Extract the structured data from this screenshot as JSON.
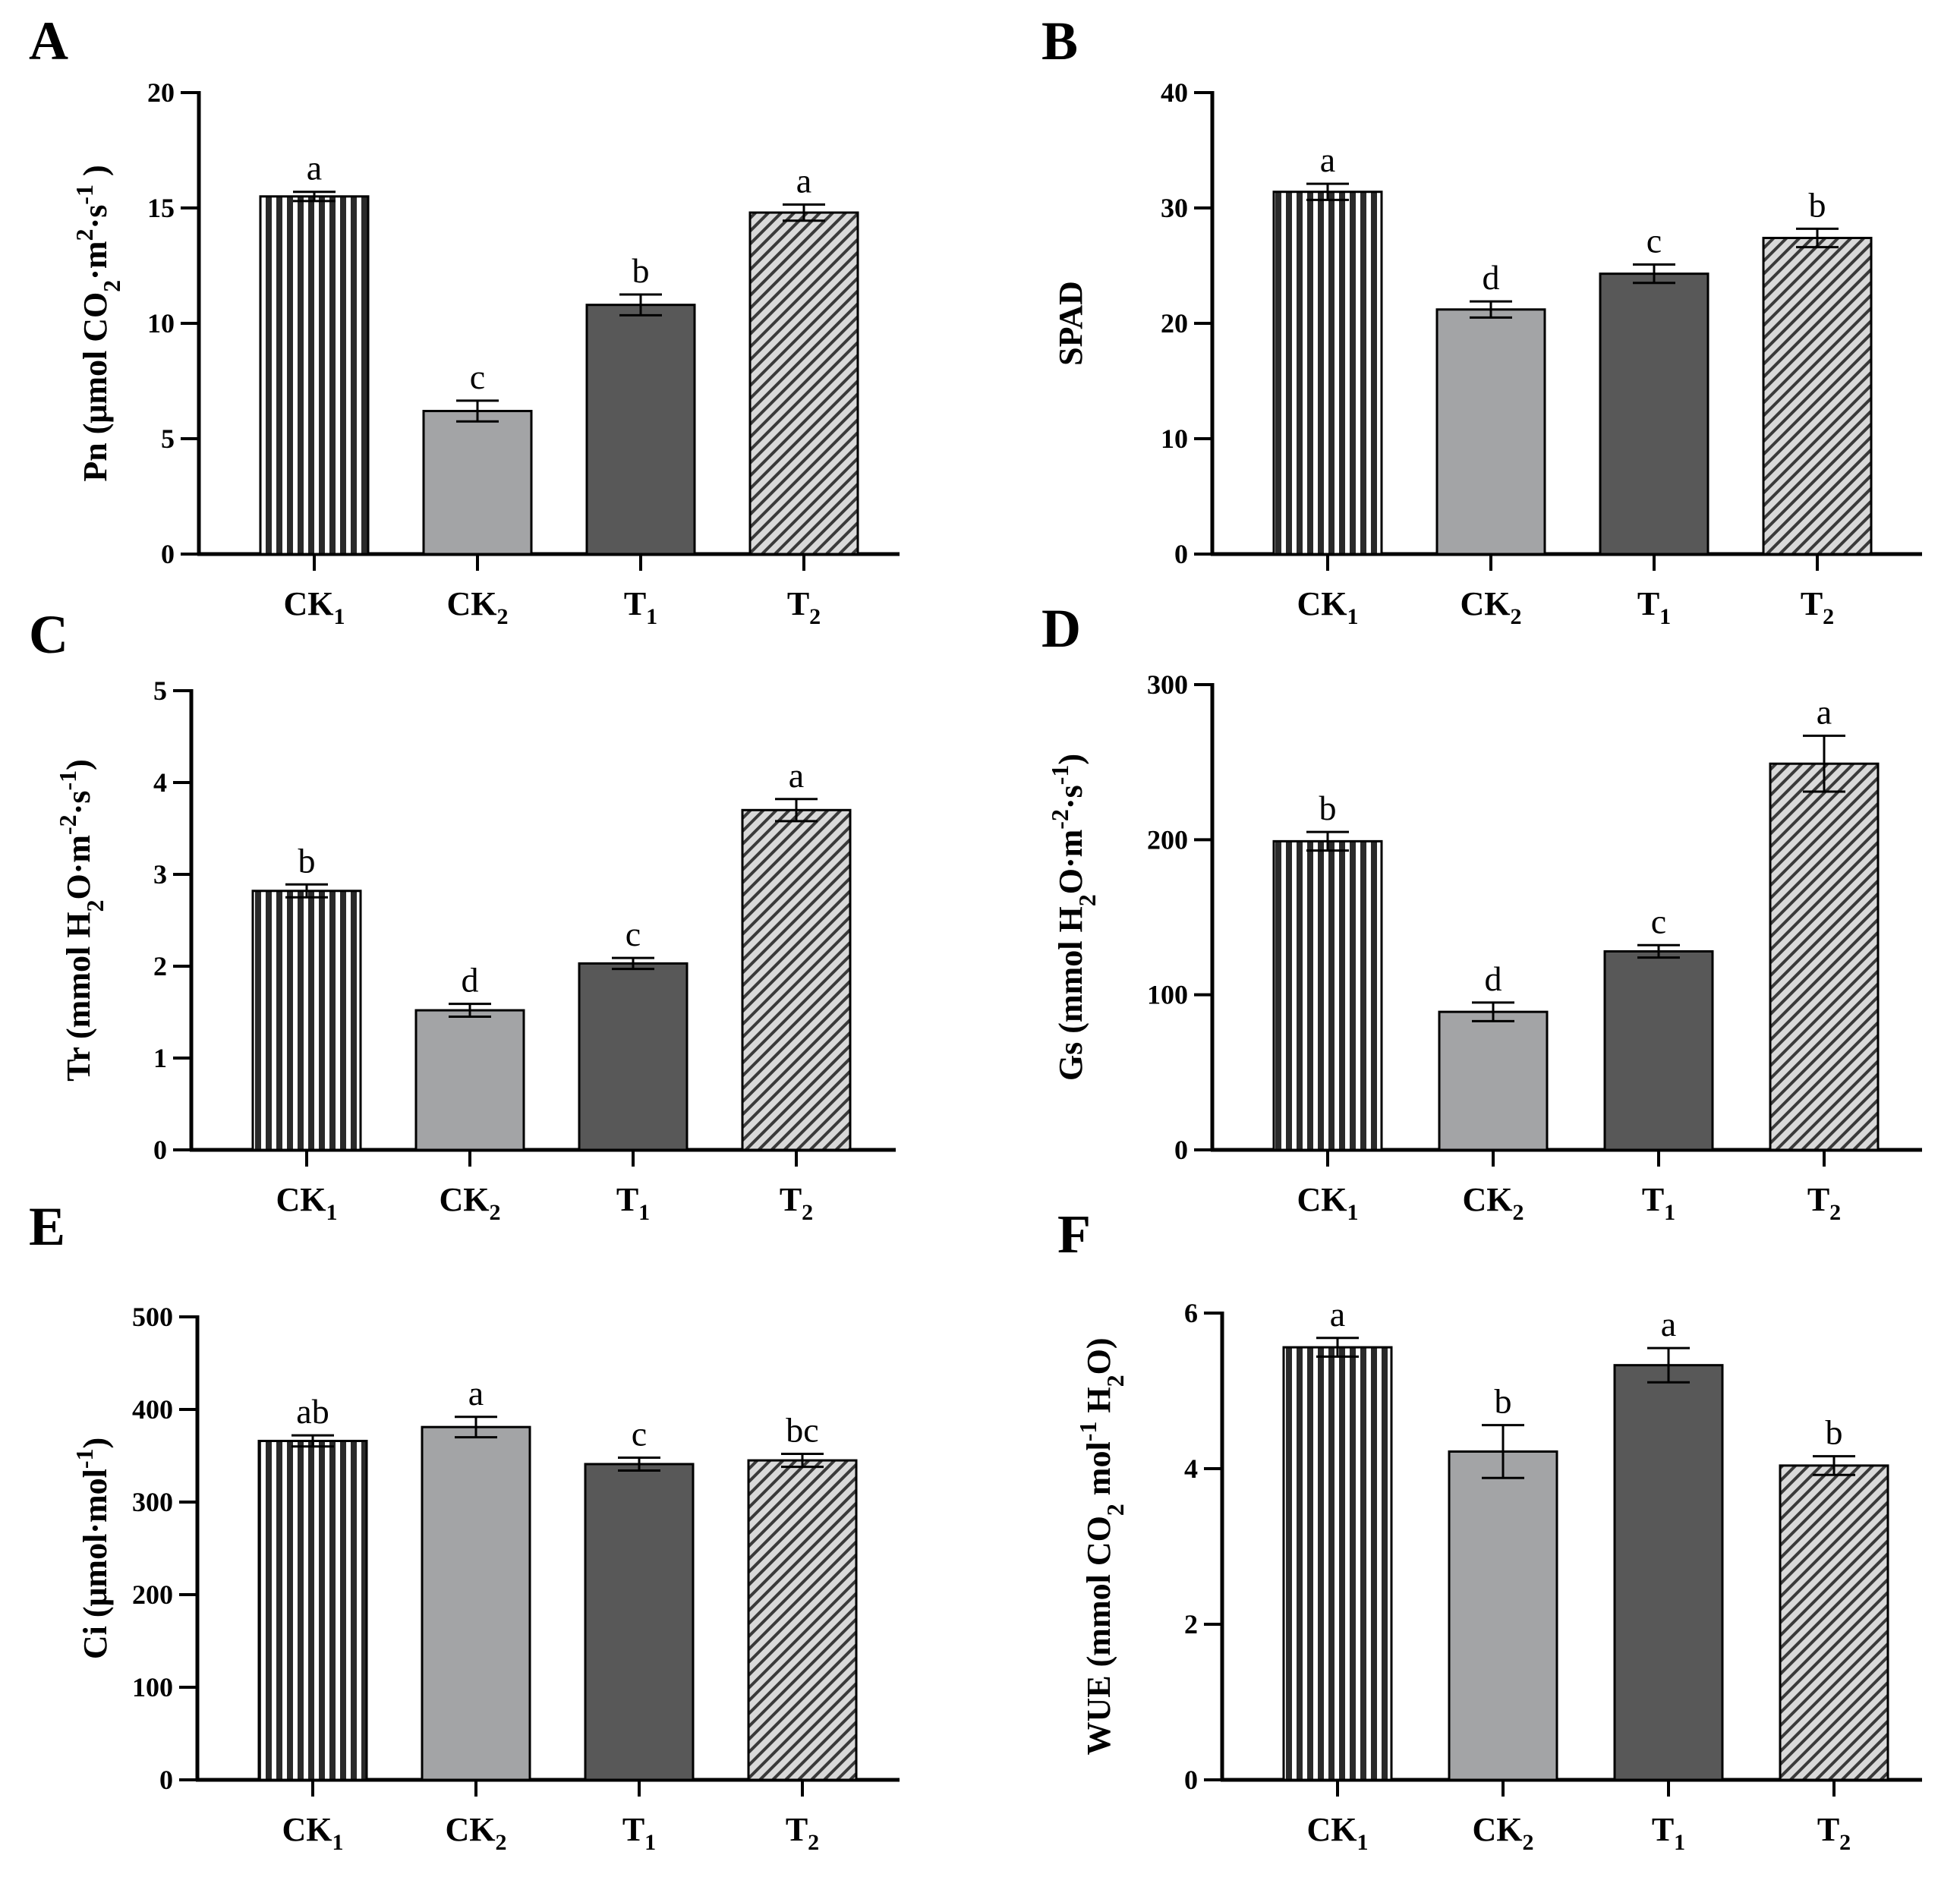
{
  "colors": {
    "ck2_fill": "#a3a4a6",
    "t1_fill": "#585858",
    "stripe_dark": "#2a2a2a",
    "hatch_bg": "#d9d9d9",
    "hatch_line": "#3a3a3a"
  },
  "chart_data": [
    {
      "type": "bar",
      "panel": "A",
      "categories": [
        {
          "main": "CK",
          "sub": "1"
        },
        {
          "main": "CK",
          "sub": "2"
        },
        {
          "main": "T",
          "sub": "1"
        },
        {
          "main": "T",
          "sub": "2"
        }
      ],
      "values": [
        15.5,
        6.2,
        10.8,
        14.8
      ],
      "errors": [
        0.2,
        0.45,
        0.45,
        0.35
      ],
      "letters": [
        "a",
        "c",
        "b",
        "a"
      ],
      "patterns": [
        "vstripe",
        "light",
        "dark",
        "hatch"
      ],
      "ylim": [
        0,
        20
      ],
      "yticks": [
        "0",
        "5",
        "10",
        "15",
        "20"
      ],
      "ylabel_parts": [
        {
          "t": "Pn (μmol CO"
        },
        {
          "t": "2",
          "s": "sub"
        },
        {
          "t": "·m"
        },
        {
          "t": "2",
          "s": "sup"
        },
        {
          "t": "·s"
        },
        {
          "t": "-1",
          "s": "sup"
        },
        {
          "t": " )"
        }
      ]
    },
    {
      "type": "bar",
      "panel": "B",
      "categories": [
        {
          "main": "CK",
          "sub": "1"
        },
        {
          "main": "CK",
          "sub": "2"
        },
        {
          "main": "T",
          "sub": "1"
        },
        {
          "main": "T",
          "sub": "2"
        }
      ],
      "values": [
        31.4,
        21.2,
        24.3,
        27.4
      ],
      "errors": [
        0.7,
        0.7,
        0.8,
        0.8
      ],
      "letters": [
        "a",
        "d",
        "c",
        "b"
      ],
      "patterns": [
        "vstripe",
        "light",
        "dark",
        "hatch"
      ],
      "ylim": [
        0,
        40
      ],
      "yticks": [
        "0",
        "10",
        "20",
        "30",
        "40"
      ],
      "ylabel_parts": [
        {
          "t": "SPAD"
        }
      ]
    },
    {
      "type": "bar",
      "panel": "C",
      "categories": [
        {
          "main": "CK",
          "sub": "1"
        },
        {
          "main": "CK",
          "sub": "2"
        },
        {
          "main": "T",
          "sub": "1"
        },
        {
          "main": "T",
          "sub": "2"
        }
      ],
      "values": [
        2.82,
        1.52,
        2.03,
        3.7
      ],
      "errors": [
        0.07,
        0.07,
        0.06,
        0.12
      ],
      "letters": [
        "b",
        "d",
        "c",
        "a"
      ],
      "patterns": [
        "vstripe",
        "light",
        "dark",
        "hatch"
      ],
      "ylim": [
        0,
        5
      ],
      "yticks": [
        "0",
        "1",
        "2",
        "3",
        "4",
        "5"
      ],
      "ylabel_parts": [
        {
          "t": "Tr (mmol H"
        },
        {
          "t": "2",
          "s": "sub"
        },
        {
          "t": "O·m"
        },
        {
          "t": "-2",
          "s": "sup"
        },
        {
          "t": "·s"
        },
        {
          "t": "-1",
          "s": "sup"
        },
        {
          "t": ")"
        }
      ]
    },
    {
      "type": "bar",
      "panel": "D",
      "categories": [
        {
          "main": "CK",
          "sub": "1"
        },
        {
          "main": "CK",
          "sub": "2"
        },
        {
          "main": "T",
          "sub": "1"
        },
        {
          "main": "T",
          "sub": "2"
        }
      ],
      "values": [
        199,
        89,
        128,
        249
      ],
      "errors": [
        6,
        6,
        4,
        18
      ],
      "letters": [
        "b",
        "d",
        "c",
        "a"
      ],
      "patterns": [
        "vstripe",
        "light",
        "dark",
        "hatch"
      ],
      "ylim": [
        0,
        300
      ],
      "yticks": [
        "0",
        "100",
        "200",
        "300"
      ],
      "ylabel_parts": [
        {
          "t": "Gs (mmol H"
        },
        {
          "t": "2",
          "s": "sub"
        },
        {
          "t": "O·m"
        },
        {
          "t": "-2",
          "s": "sup"
        },
        {
          "t": "·s"
        },
        {
          "t": "-1",
          "s": "sup"
        },
        {
          "t": ")"
        }
      ]
    },
    {
      "type": "bar",
      "panel": "E",
      "categories": [
        {
          "main": "CK",
          "sub": "1"
        },
        {
          "main": "CK",
          "sub": "2"
        },
        {
          "main": "T",
          "sub": "1"
        },
        {
          "main": "T",
          "sub": "2"
        }
      ],
      "values": [
        366,
        381,
        341,
        345
      ],
      "errors": [
        6,
        11,
        7,
        7
      ],
      "letters": [
        "ab",
        "a",
        "c",
        "bc"
      ],
      "patterns": [
        "vstripe",
        "light",
        "dark",
        "hatch"
      ],
      "ylim": [
        0,
        500
      ],
      "yticks": [
        "0",
        "100",
        "200",
        "300",
        "400",
        "500"
      ],
      "ylabel_parts": [
        {
          "t": "Ci (μmol·mol"
        },
        {
          "t": "-1",
          "s": "sup"
        },
        {
          "t": ")"
        }
      ]
    },
    {
      "type": "bar",
      "panel": "F",
      "categories": [
        {
          "main": "CK",
          "sub": "1"
        },
        {
          "main": "CK",
          "sub": "2"
        },
        {
          "main": "T",
          "sub": "1"
        },
        {
          "main": "T",
          "sub": "2"
        }
      ],
      "values": [
        5.56,
        4.22,
        5.33,
        4.04
      ],
      "errors": [
        0.12,
        0.34,
        0.22,
        0.12
      ],
      "letters": [
        "a",
        "b",
        "a",
        "b"
      ],
      "patterns": [
        "vstripe",
        "light",
        "dark",
        "hatch"
      ],
      "ylim": [
        0,
        6
      ],
      "yticks": [
        "0",
        "2",
        "4",
        "6"
      ],
      "ylabel_parts": [
        {
          "t": "WUE (mmol CO"
        },
        {
          "t": "2",
          "s": "sub"
        },
        {
          "t": " mol"
        },
        {
          "t": "-1",
          "s": "sup"
        },
        {
          "t": " H"
        },
        {
          "t": "2",
          "s": "sub"
        },
        {
          "t": "O)"
        }
      ]
    }
  ]
}
